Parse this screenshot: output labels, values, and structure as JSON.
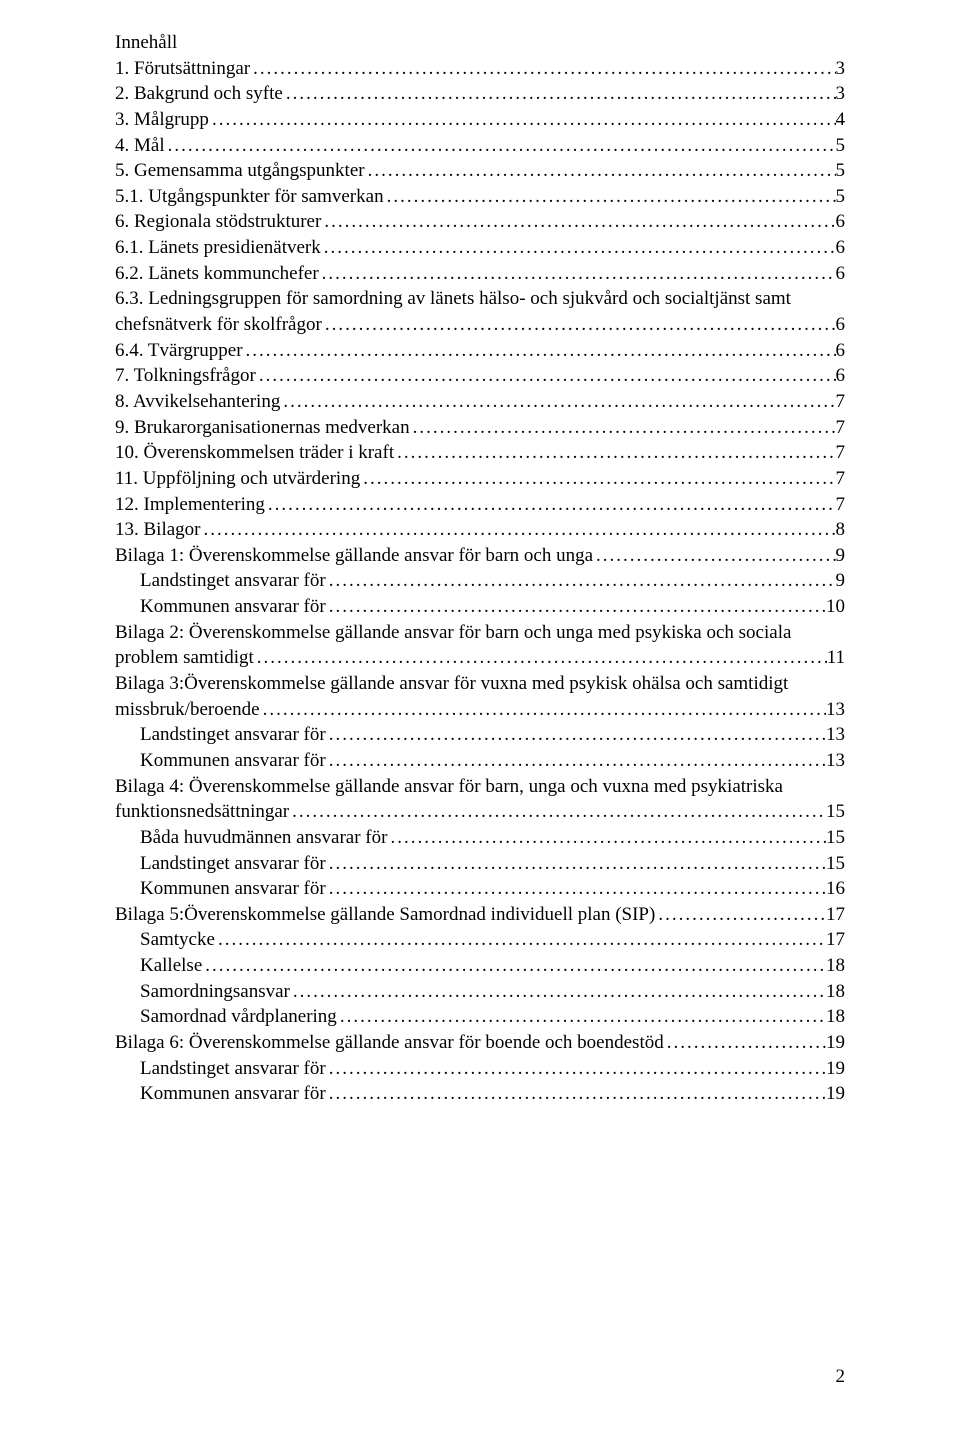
{
  "title": "Innehåll",
  "footer_page": "2",
  "toc": [
    {
      "label": "1.   Förutsättningar",
      "page": "3",
      "indent": 0,
      "wrap": false
    },
    {
      "label": "2.   Bakgrund och syfte",
      "page": "3",
      "indent": 0,
      "wrap": false
    },
    {
      "label": "3.   Målgrupp",
      "page": "4",
      "indent": 0,
      "wrap": false
    },
    {
      "label": "4.   Mål",
      "page": "5",
      "indent": 0,
      "wrap": false
    },
    {
      "label": "5.   Gemensamma utgångspunkter",
      "page": "5",
      "indent": 0,
      "wrap": false
    },
    {
      "label": "5.1.   Utgångspunkter för samverkan",
      "page": "5",
      "indent": 0,
      "wrap": false
    },
    {
      "label": "6.   Regionala stödstrukturer",
      "page": "6",
      "indent": 0,
      "wrap": false
    },
    {
      "label": "6.1.   Länets presidienätverk",
      "page": "6",
      "indent": 0,
      "wrap": false
    },
    {
      "label": "6.2.   Länets kommunchefer",
      "page": "6",
      "indent": 0,
      "wrap": false
    },
    {
      "label": "6.3.   Ledningsgruppen för samordning av länets hälso- och sjukvård och socialtjänst samt",
      "cont": "chefsnätverk för skolfrågor",
      "page": "6",
      "indent": 0,
      "wrap": true
    },
    {
      "label": "6.4.   Tvärgrupper",
      "page": "6",
      "indent": 0,
      "wrap": false
    },
    {
      "label": "7.   Tolkningsfrågor",
      "page": "6",
      "indent": 0,
      "wrap": false
    },
    {
      "label": "8.   Avvikelsehantering",
      "page": "7",
      "indent": 0,
      "wrap": false
    },
    {
      "label": "9.   Brukarorganisationernas medverkan",
      "page": "7",
      "indent": 0,
      "wrap": false
    },
    {
      "label": "10.   Överenskommelsen träder i kraft",
      "page": "7",
      "indent": 0,
      "wrap": false
    },
    {
      "label": "11.   Uppföljning och utvärdering",
      "page": "7",
      "indent": 0,
      "wrap": false
    },
    {
      "label": "12.   Implementering",
      "page": "7",
      "indent": 0,
      "wrap": false
    },
    {
      "label": "13.   Bilagor",
      "page": "8",
      "indent": 0,
      "wrap": false
    },
    {
      "label": "Bilaga 1: Överenskommelse gällande ansvar för barn och unga",
      "page": "9",
      "indent": 0,
      "wrap": false
    },
    {
      "label": "Landstinget ansvarar för",
      "page": "9",
      "indent": 1,
      "wrap": false
    },
    {
      "label": "Kommunen ansvarar för",
      "page": "10",
      "indent": 1,
      "wrap": false
    },
    {
      "label": "Bilaga 2: Överenskommelse gällande ansvar för barn och unga med psykiska och sociala",
      "cont": "problem samtidigt",
      "page": "11",
      "indent": 0,
      "wrap": true
    },
    {
      "label": "Bilaga 3:Överenskommelse gällande ansvar för vuxna med psykisk ohälsa och samtidigt",
      "cont": "missbruk/beroende",
      "page": "13",
      "indent": 0,
      "wrap": true
    },
    {
      "label": "Landstinget ansvarar för",
      "page": "13",
      "indent": 1,
      "wrap": false
    },
    {
      "label": "Kommunen ansvarar för",
      "page": "13",
      "indent": 1,
      "wrap": false
    },
    {
      "label": "Bilaga 4: Överenskommelse gällande ansvar för barn, unga och vuxna med psykiatriska",
      "cont": "funktionsnedsättningar",
      "page": "15",
      "indent": 0,
      "wrap": true
    },
    {
      "label": "Båda huvudmännen ansvarar för",
      "page": "15",
      "indent": 1,
      "wrap": false
    },
    {
      "label": "Landstinget ansvarar för",
      "page": "15",
      "indent": 1,
      "wrap": false
    },
    {
      "label": "Kommunen ansvarar för",
      "page": "16",
      "indent": 1,
      "wrap": false
    },
    {
      "label": "Bilaga 5:Överenskommelse gällande Samordnad individuell plan (SIP)",
      "page": "17",
      "indent": 0,
      "wrap": false
    },
    {
      "label": "Samtycke",
      "page": "17",
      "indent": 1,
      "wrap": false
    },
    {
      "label": "Kallelse",
      "page": "18",
      "indent": 1,
      "wrap": false
    },
    {
      "label": "Samordningsansvar",
      "page": "18",
      "indent": 1,
      "wrap": false
    },
    {
      "label": "Samordnad vårdplanering",
      "page": "18",
      "indent": 1,
      "wrap": false
    },
    {
      "label": "Bilaga 6: Överenskommelse gällande ansvar för boende och boendestöd",
      "page": "19",
      "indent": 0,
      "wrap": false
    },
    {
      "label": "Landstinget ansvarar för",
      "page": "19",
      "indent": 1,
      "wrap": false
    },
    {
      "label": "Kommunen ansvarar för",
      "page": "19",
      "indent": 1,
      "wrap": false
    }
  ]
}
